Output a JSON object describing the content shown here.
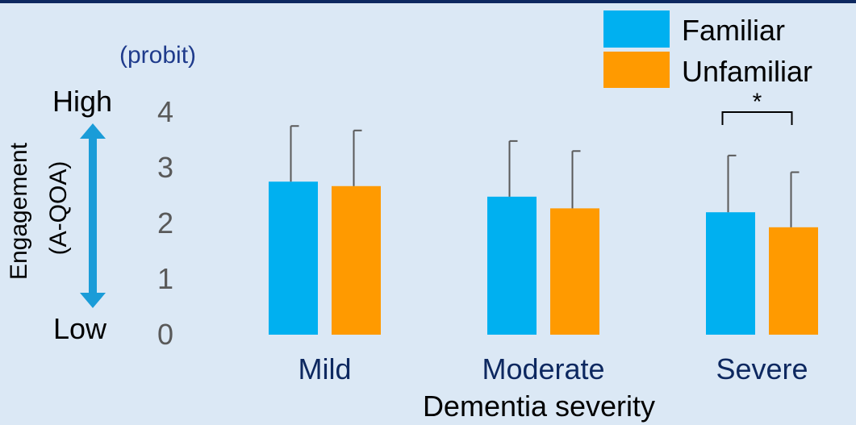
{
  "colors": {
    "background": "#dbe8f5",
    "top_border": "#0d2860",
    "familiar": "#00b0f0",
    "unfamiliar": "#ff9a00",
    "arrow": "#1a9cd8",
    "category_text": "#0d2860",
    "unit_text": "#1f3b8c",
    "axis_text": "#000000",
    "tick_text": "#595959",
    "error_bar": "#595959"
  },
  "chart_data": {
    "type": "bar",
    "unit_label": "(probit)",
    "xlabel": "Dementia severity",
    "ylabel_line1": "Engagement",
    "ylabel_line2": "(A-QOA)",
    "high_label": "High",
    "low_label": "Low",
    "categories": [
      "Mild",
      "Moderate",
      "Severe"
    ],
    "series": [
      {
        "name": "Familiar",
        "values": [
          2.75,
          2.48,
          2.2
        ],
        "error_upper": [
          3.75,
          3.48,
          3.22
        ]
      },
      {
        "name": "Unfamiliar",
        "values": [
          2.67,
          2.27,
          1.93
        ],
        "error_upper": [
          3.67,
          3.3,
          2.92
        ]
      }
    ],
    "yticks": [
      "0",
      "1",
      "2",
      "3",
      "4"
    ],
    "ylim": [
      0,
      4
    ],
    "legend_position": "top-right",
    "grid": false,
    "significance": {
      "label": "*",
      "category_index": 2
    }
  }
}
